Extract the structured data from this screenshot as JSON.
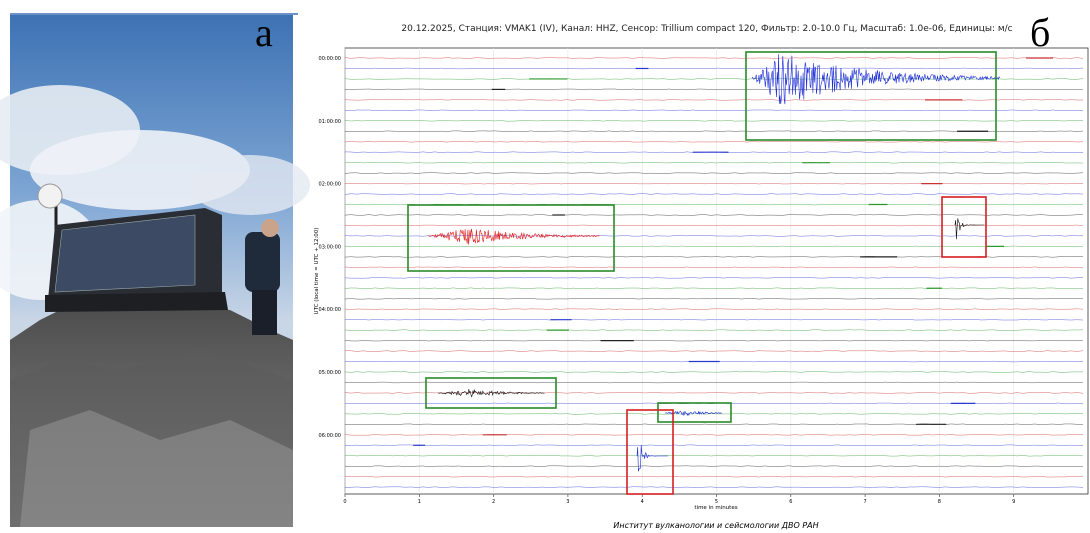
{
  "panel_a": {
    "label": "а"
  },
  "panel_b": {
    "label": "б",
    "chart_data": {
      "type": "helicorder",
      "title": "20.12.2025, Станция: VMAK1 (IV), Канал: HHZ, Сенсор: Trillium compact 120, Фильтр: 2.0-10.0 Гц, Масштаб: 1.0e-06, Единицы: м/с",
      "y_label": "UTC (local time = UTC + 12:00)",
      "x_label": "time in minutes",
      "xlim": [
        0,
        10
      ],
      "xticks": [
        0,
        1,
        2,
        3,
        4,
        5,
        6,
        7,
        8,
        9
      ],
      "yticks": [
        "00:00:00",
        "01:00:00",
        "02:00:00",
        "03:00:00",
        "04:00:00",
        "05:00:00",
        "06:00:00"
      ]
    },
    "footer": "Институт вулканологии и сейсмологии ДВО РАН"
  }
}
